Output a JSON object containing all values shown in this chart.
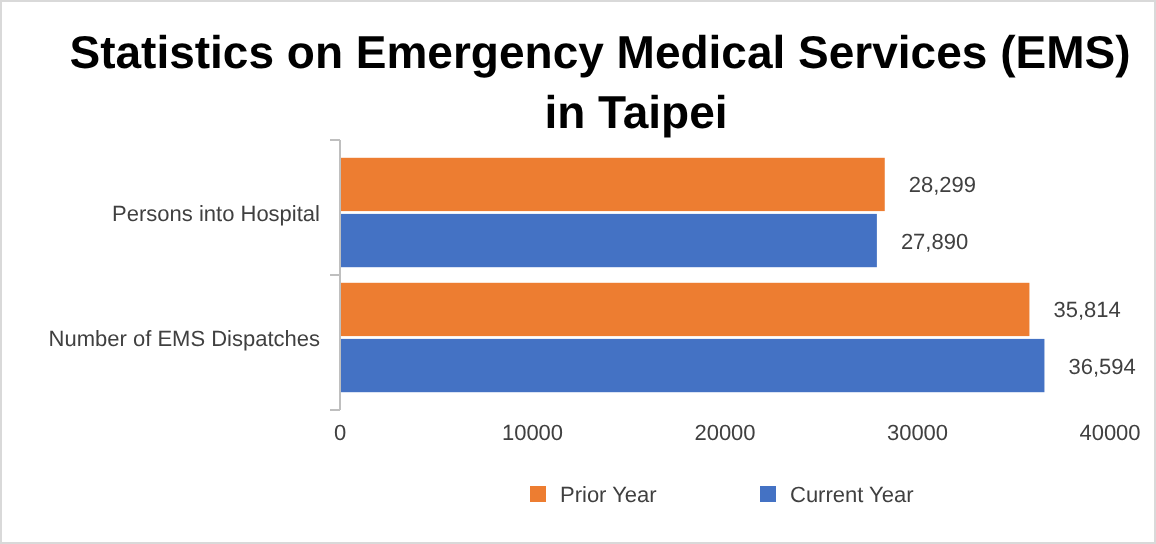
{
  "chart_data": {
    "type": "bar",
    "orientation": "horizontal",
    "title": "Statistics on Emergency Medical Services (EMS) in Taipei",
    "categories": [
      "Persons into Hospital",
      "Number of EMS Dispatches"
    ],
    "series": [
      {
        "name": "Prior Year",
        "color": "#ed7d31",
        "values": [
          28299,
          35814
        ],
        "value_labels": [
          "28,299",
          "35,814"
        ]
      },
      {
        "name": "Current Year",
        "color": "#4472c4",
        "values": [
          27890,
          36594
        ],
        "value_labels": [
          "27,890",
          "36,594"
        ]
      }
    ],
    "xlim": [
      0,
      40000
    ],
    "xticks": [
      0,
      10000,
      20000,
      30000,
      40000
    ],
    "grid": false,
    "legend": "bottom"
  }
}
